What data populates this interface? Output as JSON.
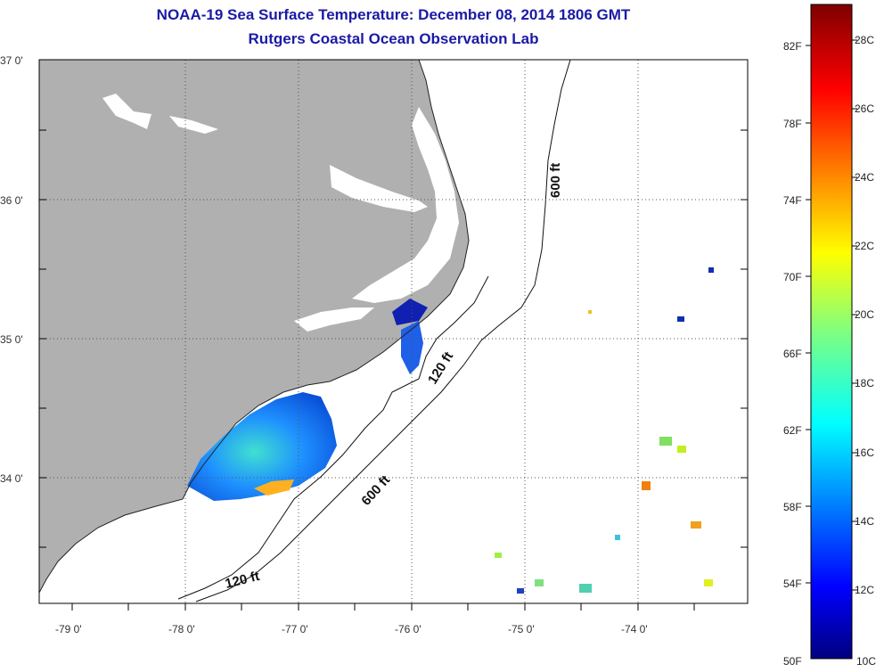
{
  "title": {
    "line1": "NOAA-19 Sea Surface Temperature:  December 08, 2014 1806 GMT",
    "line2": "Rutgers Coastal Ocean Observation Lab"
  },
  "axes": {
    "longitudes": [
      "-79 0'",
      "-78 0'",
      "-77 0'",
      "-76 0'",
      "-75 0'",
      "-74 0'"
    ],
    "latitudes": [
      "37 0'",
      "36 0'",
      "35 0'",
      "34 0'"
    ]
  },
  "contours": {
    "label_600_north": "600 ft",
    "label_600_south": "600 ft",
    "label_120_east": "120 ft",
    "label_120_south": "120 ft"
  },
  "colorbar": {
    "fahrenheit": [
      "82F",
      "78F",
      "74F",
      "70F",
      "66F",
      "62F",
      "58F",
      "54F",
      "50F"
    ],
    "celsius": [
      "28C",
      "26C",
      "24C",
      "22C",
      "20C",
      "18C",
      "16C",
      "14C",
      "12C",
      "10C"
    ]
  },
  "colors": {
    "land": "#b0b0b0",
    "ocean": "#ffffff",
    "title": "#1a1aa6"
  }
}
